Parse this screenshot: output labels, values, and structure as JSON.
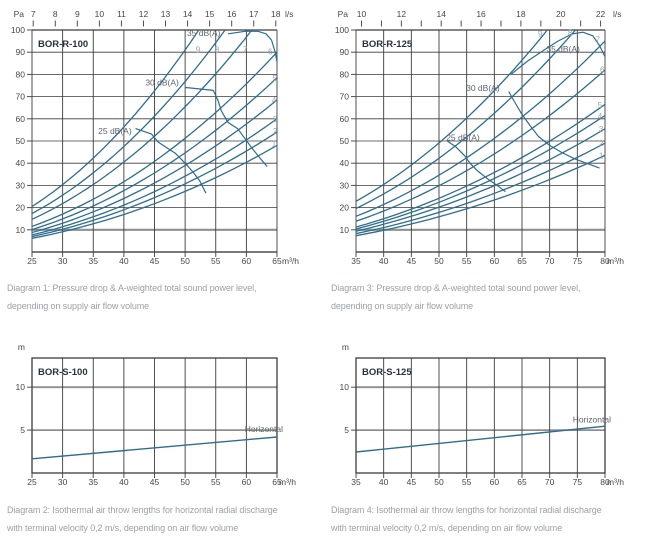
{
  "page": {
    "background": "#ffffff"
  },
  "colors": {
    "curve_blue": "#2d6d90",
    "grid_dark": "#3c3c3c",
    "grid_gray": "#8f8f8f",
    "axis_line": "#4f4f4f",
    "tick_text": "#474747",
    "title_text": "#26323c",
    "caption_text": "#9aa1a8",
    "curve_number_text": "#95a0a8",
    "db_label_text": "#5c666e"
  },
  "chart_data": [
    {
      "type": "line",
      "variant": "pressure-sound",
      "title": "BOR-R-100",
      "caption": [
        "Diagram 1: Pressure drop & A-weighted total sound power level,",
        "depending on supply air flow volume"
      ],
      "y_axis": {
        "unit": "Pa",
        "min": 0,
        "max": 100,
        "ticks": [
          10,
          20,
          30,
          40,
          50,
          60,
          70,
          80,
          90,
          100
        ],
        "emphasized_tick": 10
      },
      "x_axis_bottom": {
        "unit": "m³/h",
        "min": 25,
        "max": 65,
        "ticks": [
          25,
          30,
          35,
          40,
          45,
          50,
          55,
          60,
          65
        ],
        "unit_gap": 5
      },
      "x_axis_top": {
        "unit": "l/s",
        "ticks": [
          7,
          8,
          9,
          10,
          11,
          12,
          13,
          14,
          15,
          16,
          17,
          18
        ],
        "labeled": [
          7,
          8,
          9,
          10,
          11,
          12,
          13,
          14,
          15,
          16,
          17,
          18
        ],
        "to_bottom_factor": 3.6
      },
      "curves": {
        "exponent": 2.15,
        "q_ref": 65,
        "series": [
          {
            "name": "1",
            "p_at_ref": 48
          },
          {
            "name": "2",
            "p_at_ref": 54
          },
          {
            "name": "3",
            "p_at_ref": 60
          },
          {
            "name": "4",
            "p_at_ref": 68.5
          },
          {
            "name": "5",
            "p_at_ref": 78.5
          },
          {
            "name": "6",
            "p_at_ref": 90
          },
          {
            "name": "7",
            "p_at_ref": 115
          },
          {
            "name": "8",
            "p_at_ref": 135
          },
          {
            "name": "9",
            "p_at_ref": 160
          }
        ]
      },
      "curve_labels": [
        {
          "text": "1",
          "q": 64.5,
          "p": 48.8
        },
        {
          "text": "2",
          "q": 64.7,
          "p": 54.4
        },
        {
          "text": "3",
          "q": 64.7,
          "p": 59.8
        },
        {
          "text": "4",
          "q": 64.5,
          "p": 68.4
        },
        {
          "text": "5",
          "q": 64.6,
          "p": 78.4
        },
        {
          "text": "6",
          "q": 63.9,
          "p": 90.3
        },
        {
          "text": "7",
          "q": 59.8,
          "p": 91.2
        },
        {
          "text": "8",
          "q": 55.2,
          "p": 91.2
        },
        {
          "text": "9",
          "q": 52.1,
          "p": 91.2
        }
      ],
      "sound_lines": [
        {
          "label": "25 dB(A)",
          "label_pos": [
            35.8,
            54.6
          ],
          "points": [
            [
              41.9,
              55.6
            ],
            [
              44.5,
              53.2
            ],
            [
              45.6,
              49.5
            ],
            [
              47,
              47
            ],
            [
              48.4,
              44.5
            ],
            [
              50,
              40
            ],
            [
              51.3,
              36
            ],
            [
              52.4,
              32
            ],
            [
              53.4,
              26.5
            ]
          ]
        },
        {
          "label": "30 dB(A)",
          "label_pos": [
            43.5,
            76.4
          ],
          "points": [
            [
              50.1,
              74.1
            ],
            [
              54.6,
              72.8
            ],
            [
              55.4,
              68
            ],
            [
              55.9,
              63.6
            ],
            [
              57,
              58.4
            ],
            [
              58.6,
              55.5
            ],
            [
              59.8,
              51
            ],
            [
              61,
              46.5
            ],
            [
              62.3,
              42
            ],
            [
              63.4,
              38.5
            ]
          ]
        },
        {
          "label": "35 dB(A)",
          "label_pos": [
            50.3,
            98.6
          ],
          "points": [
            [
              57,
              98.3
            ],
            [
              59.8,
              99.4
            ],
            [
              61.9,
              99.4
            ],
            [
              63.2,
              98.3
            ],
            [
              64.1,
              95.5
            ],
            [
              64.7,
              90
            ],
            [
              65,
              85.5
            ]
          ]
        }
      ]
    },
    {
      "type": "line",
      "variant": "pressure-sound",
      "title": "BOR-R-125",
      "caption": [
        "Diagram 3: Pressure drop & A-weighted total sound power level,",
        "depending on supply air flow volume"
      ],
      "y_axis": {
        "unit": "Pa",
        "min": 0,
        "max": 100,
        "ticks": [
          10,
          20,
          30,
          40,
          50,
          60,
          70,
          80,
          90,
          100
        ],
        "emphasized_tick": 10
      },
      "x_axis_bottom": {
        "unit": "m³/h",
        "min": 35,
        "max": 80,
        "ticks": [
          35,
          40,
          45,
          50,
          55,
          60,
          65,
          70,
          75,
          80
        ],
        "unit_gap": 2
      },
      "x_axis_top": {
        "unit": "l/s",
        "ticks": [
          10,
          11,
          12,
          13,
          14,
          15,
          16,
          17,
          18,
          19,
          20,
          21,
          22
        ],
        "labeled": [
          10,
          12,
          14,
          16,
          18,
          20,
          22
        ],
        "to_bottom_factor": 3.6
      },
      "curves": {
        "exponent": 2.15,
        "q_ref": 80,
        "series": [
          {
            "name": "1",
            "p_at_ref": 43.5
          },
          {
            "name": "2",
            "p_at_ref": 49
          },
          {
            "name": "3",
            "p_at_ref": 55.5
          },
          {
            "name": "4",
            "p_at_ref": 61.5
          },
          {
            "name": "5",
            "p_at_ref": 66.5
          },
          {
            "name": "6",
            "p_at_ref": 82
          },
          {
            "name": "7",
            "p_at_ref": 95
          },
          {
            "name": "8",
            "p_at_ref": 116
          },
          {
            "name": "9",
            "p_at_ref": 135
          }
        ]
      },
      "curve_labels": [
        {
          "text": "1",
          "q": 79.3,
          "p": 43.5
        },
        {
          "text": "2",
          "q": 79.3,
          "p": 49
        },
        {
          "text": "3",
          "q": 79.3,
          "p": 55.3
        },
        {
          "text": "4",
          "q": 79.1,
          "p": 61.2
        },
        {
          "text": "5",
          "q": 79.1,
          "p": 66.2
        },
        {
          "text": "6",
          "q": 79.5,
          "p": 82.1
        },
        {
          "text": "7",
          "q": 78.7,
          "p": 95.7
        },
        {
          "text": "8",
          "q": 73.7,
          "p": 98.9
        },
        {
          "text": "9",
          "q": 68.3,
          "p": 98.5
        }
      ],
      "sound_lines": [
        {
          "label": "25 dB(A)",
          "label_pos": [
            51.3,
            51.6
          ],
          "points": [
            [
              51.5,
              50
            ],
            [
              53,
              47.5
            ],
            [
              54.7,
              43.2
            ],
            [
              55.6,
              40
            ],
            [
              57,
              36.5
            ],
            [
              59,
              32.5
            ],
            [
              60.6,
              29.8
            ],
            [
              62,
              27.2
            ]
          ]
        },
        {
          "label": "30 dB(A)",
          "label_pos": [
            54.9,
            73.8
          ],
          "points": [
            [
              62.6,
              72.3
            ],
            [
              63.6,
              67.8
            ],
            [
              65,
              62
            ],
            [
              66.5,
              56.8
            ],
            [
              68,
              52
            ],
            [
              70,
              48
            ],
            [
              72.2,
              44.8
            ],
            [
              74.5,
              42
            ],
            [
              77,
              39.7
            ],
            [
              79,
              37.8
            ]
          ]
        },
        {
          "label": "35 dB(A)",
          "label_pos": [
            69.4,
            91.5
          ],
          "points": [
            [
              63,
              80
            ],
            [
              66,
              86
            ],
            [
              69,
              91
            ],
            [
              71.5,
              95
            ],
            [
              74,
              98.2
            ],
            [
              76,
              99
            ],
            [
              77.8,
              97.4
            ],
            [
              79,
              93
            ],
            [
              80,
              88
            ]
          ]
        }
      ]
    },
    {
      "type": "line",
      "variant": "throw-length",
      "title": "BOR-S-100",
      "caption": [
        "Diagram 2: Isothermal air throw lengths for horizontal radial discharge",
        "with terminal velocity 0,2 m/s, depending on air flow volume"
      ],
      "y_axis": {
        "unit": "m",
        "min": 0,
        "max": 13.4,
        "ticks": [
          5,
          10
        ]
      },
      "x_axis_bottom": {
        "unit": "m³/h",
        "min": 25,
        "max": 65,
        "ticks": [
          25,
          30,
          35,
          40,
          45,
          50,
          55,
          60,
          65
        ],
        "unit_gap": 2
      },
      "line": {
        "name": "Horizontal",
        "points": [
          [
            25,
            1.65
          ],
          [
            65,
            4.2
          ]
        ],
        "label_pos": [
          65,
          5.1
        ]
      }
    },
    {
      "type": "line",
      "variant": "throw-length",
      "title": "BOR-S-125",
      "caption": [
        "Diagram 4: Isothermal air throw lengths for horizontal radial discharge",
        "with terminal velocity 0,2 m/s, depending on air flow volume"
      ],
      "y_axis": {
        "unit": "m",
        "min": 0,
        "max": 13.4,
        "ticks": [
          5,
          10
        ]
      },
      "x_axis_bottom": {
        "unit": "m³/h",
        "min": 35,
        "max": 80,
        "ticks": [
          35,
          40,
          45,
          50,
          55,
          60,
          65,
          70,
          75,
          80
        ],
        "unit_gap": 2
      },
      "line": {
        "name": "Horizontal",
        "points": [
          [
            35,
            2.45
          ],
          [
            80,
            5.45
          ]
        ],
        "label_pos": [
          80,
          6.25
        ]
      }
    }
  ]
}
